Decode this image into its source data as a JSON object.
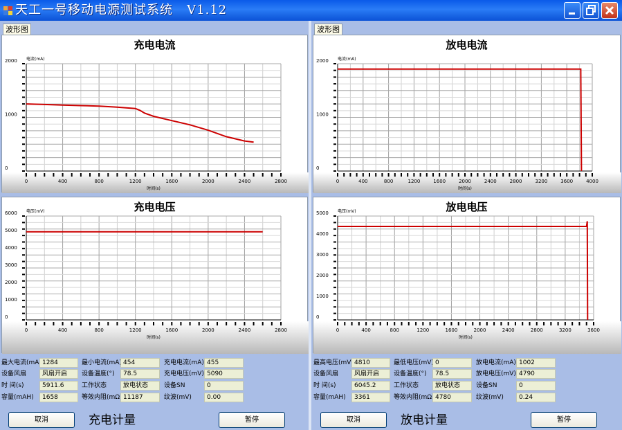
{
  "window": {
    "title": "天工一号移动电源测试系统   V1.12"
  },
  "colors": {
    "curve": "#cc0000",
    "title_bar": "#0a5ae8",
    "panel_bg": "#a9bde6",
    "value_bg": "#ecefd6"
  },
  "icons": {
    "app": "battery-app-icon",
    "minimize": "minimize-icon",
    "maximize": "maximize-icon",
    "close": "close-icon"
  },
  "left": {
    "tab_label": "波形图",
    "charts": [
      {
        "title": "充电电流",
        "ylabel": "电流(mA)",
        "xlabel": "时间(s)",
        "yticks": [
          "2000",
          "1000",
          "0"
        ],
        "xticks": [
          "0",
          "400",
          "800",
          "1200",
          "1600",
          "2000",
          "2400",
          "2800"
        ]
      },
      {
        "title": "充电电压",
        "ylabel": "电压(mV)",
        "xlabel": "时间(s)",
        "yticks": [
          "6000",
          "5000",
          "4000",
          "3000",
          "2000",
          "1000",
          "0"
        ],
        "xticks": [
          "0",
          "400",
          "800",
          "1200",
          "1600",
          "2000",
          "2400",
          "2800"
        ]
      }
    ],
    "info_rows": [
      [
        {
          "label": "最大电流(mA)",
          "value": "1284"
        },
        {
          "label": "最小电流(mA)",
          "value": "454"
        },
        {
          "label": "充电电流(mA)",
          "value": "455"
        }
      ],
      [
        {
          "label": "设备风扇",
          "value": "风扇开启"
        },
        {
          "label": "设备温度(°)",
          "value": "78.5"
        },
        {
          "label": "充电电压(mV)",
          "value": "5090"
        }
      ],
      [
        {
          "label": "时 间(s)",
          "value": "5911.6"
        },
        {
          "label": "工作状态",
          "value": "放电状态"
        },
        {
          "label": "设备SN",
          "value": "0"
        }
      ],
      [
        {
          "label": "容量(mAH)",
          "value": "1658"
        },
        {
          "label": "等效内阻(mΩ)",
          "value": "11187"
        },
        {
          "label": "纹波(mV)",
          "value": "0.00"
        }
      ]
    ],
    "cancel_label": "取消",
    "meter_label": "充电计量",
    "pause_label": "暂停"
  },
  "right": {
    "tab_label": "波形图",
    "charts": [
      {
        "title": "放电电流",
        "ylabel": "电流(mA)",
        "xlabel": "时间(s)",
        "yticks": [
          "2000",
          "1000",
          "0"
        ],
        "xticks": [
          "0",
          "400",
          "800",
          "1200",
          "1600",
          "2000",
          "2400",
          "2800",
          "3200",
          "3600",
          "4000"
        ]
      },
      {
        "title": "放电电压",
        "ylabel": "电压(mV)",
        "xlabel": "时间(s)",
        "yticks": [
          "5000",
          "4000",
          "3000",
          "2000",
          "1000",
          "0"
        ],
        "xticks": [
          "0",
          "400",
          "800",
          "1200",
          "1600",
          "2000",
          "2400",
          "2800",
          "3200",
          "3600"
        ]
      }
    ],
    "info_rows": [
      [
        {
          "label": "最高电压(mV)",
          "value": "4810"
        },
        {
          "label": "最低电压(mV)",
          "value": "0"
        },
        {
          "label": "放电电流(mA)",
          "value": "1002"
        }
      ],
      [
        {
          "label": "设备风扇",
          "value": "风扇开启"
        },
        {
          "label": "设备温度(°)",
          "value": "78.5"
        },
        {
          "label": "放电电压(mV)",
          "value": "4790"
        }
      ],
      [
        {
          "label": "时 间(s)",
          "value": "6045.2"
        },
        {
          "label": "工作状态",
          "value": "放电状态"
        },
        {
          "label": "设备SN",
          "value": "0"
        }
      ],
      [
        {
          "label": "容量(mAH)",
          "value": "3361"
        },
        {
          "label": "等效内阻(mΩ)",
          "value": "4780"
        },
        {
          "label": "纹波(mV)",
          "value": "0.24"
        }
      ]
    ],
    "cancel_label": "取消",
    "meter_label": "放电计量",
    "pause_label": "暂停"
  },
  "chart_data": [
    {
      "type": "line",
      "title": "充电电流",
      "xlabel": "时间(s)",
      "ylabel": "电流(mA)",
      "xlim": [
        0,
        2800
      ],
      "ylim": [
        0,
        2000
      ],
      "grid": true,
      "x": [
        0,
        200,
        400,
        600,
        800,
        1000,
        1200,
        1250,
        1300,
        1400,
        1600,
        1800,
        2000,
        2200,
        2400,
        2500
      ],
      "y": [
        1250,
        1240,
        1230,
        1220,
        1210,
        1190,
        1165,
        1130,
        1080,
        1020,
        940,
        860,
        760,
        640,
        560,
        540
      ]
    },
    {
      "type": "line",
      "title": "放电电流",
      "xlabel": "时间(s)",
      "ylabel": "电流(mA)",
      "xlim": [
        0,
        4000
      ],
      "ylim": [
        0,
        2000
      ],
      "grid": true,
      "x": [
        0,
        400,
        800,
        1200,
        1600,
        2000,
        2400,
        2800,
        3200,
        3600,
        3820,
        3830
      ],
      "y": [
        1900,
        1900,
        1900,
        1900,
        1900,
        1900,
        1900,
        1900,
        1900,
        1900,
        1900,
        0
      ]
    },
    {
      "type": "line",
      "title": "充电电压",
      "xlabel": "时间(s)",
      "ylabel": "电压(mV)",
      "xlim": [
        0,
        2800
      ],
      "ylim": [
        0,
        6000
      ],
      "grid": true,
      "x": [
        0,
        400,
        800,
        1200,
        1600,
        2000,
        2400,
        2600
      ],
      "y": [
        5090,
        5090,
        5090,
        5090,
        5090,
        5090,
        5090,
        5090
      ]
    },
    {
      "type": "line",
      "title": "放电电压",
      "xlabel": "时间(s)",
      "ylabel": "电压(mV)",
      "xlim": [
        0,
        3600
      ],
      "ylim": [
        0,
        5000
      ],
      "grid": true,
      "x": [
        0,
        400,
        800,
        1200,
        1600,
        2000,
        2400,
        2800,
        3200,
        3500,
        3510,
        3515
      ],
      "y": [
        4500,
        4500,
        4500,
        4500,
        4500,
        4500,
        4500,
        4500,
        4500,
        4500,
        4750,
        0
      ]
    }
  ]
}
